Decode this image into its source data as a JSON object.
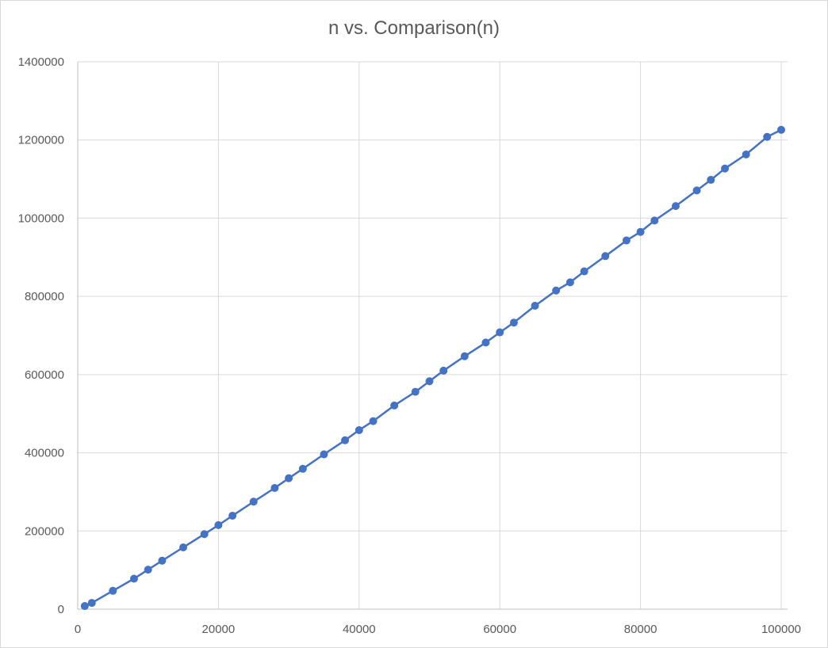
{
  "chart_data": {
    "type": "scatter",
    "title": "n vs. Comparison(n)",
    "xlabel": "",
    "ylabel": "",
    "xlim": [
      0,
      100000
    ],
    "ylim": [
      0,
      1400000
    ],
    "x_ticks": [
      0,
      20000,
      40000,
      60000,
      80000,
      100000
    ],
    "y_ticks": [
      0,
      200000,
      400000,
      600000,
      800000,
      1000000,
      1200000,
      1400000
    ],
    "x_tick_labels": [
      "0",
      "20000",
      "40000",
      "60000",
      "80000",
      "100000"
    ],
    "y_tick_labels": [
      "0",
      "200000",
      "400000",
      "600000",
      "800000",
      "1000000",
      "1200000",
      "1400000"
    ],
    "grid": true,
    "legend": "none",
    "series": [
      {
        "color": "#4472c4",
        "markers": true,
        "lines": true,
        "x": [
          1000,
          2000,
          5000,
          8000,
          10000,
          12000,
          15000,
          18000,
          20000,
          22000,
          25000,
          28000,
          30000,
          32000,
          35000,
          38000,
          40000,
          42000,
          45000,
          48000,
          50000,
          52000,
          55000,
          58000,
          60000,
          62000,
          65000,
          68000,
          70000,
          72000,
          75000,
          78000,
          80000,
          82000,
          85000,
          88000,
          90000,
          92000,
          95000,
          98000,
          100000
        ],
        "y": [
          8000,
          16000,
          47000,
          78000,
          101000,
          124000,
          158000,
          192000,
          215000,
          239000,
          275000,
          310000,
          335000,
          359000,
          396000,
          432000,
          458000,
          481000,
          521000,
          556000,
          583000,
          610000,
          647000,
          682000,
          708000,
          733000,
          776000,
          815000,
          836000,
          864000,
          903000,
          943000,
          965000,
          994000,
          1031000,
          1071000,
          1098000,
          1127000,
          1163000,
          1208000,
          1226000
        ]
      }
    ]
  }
}
